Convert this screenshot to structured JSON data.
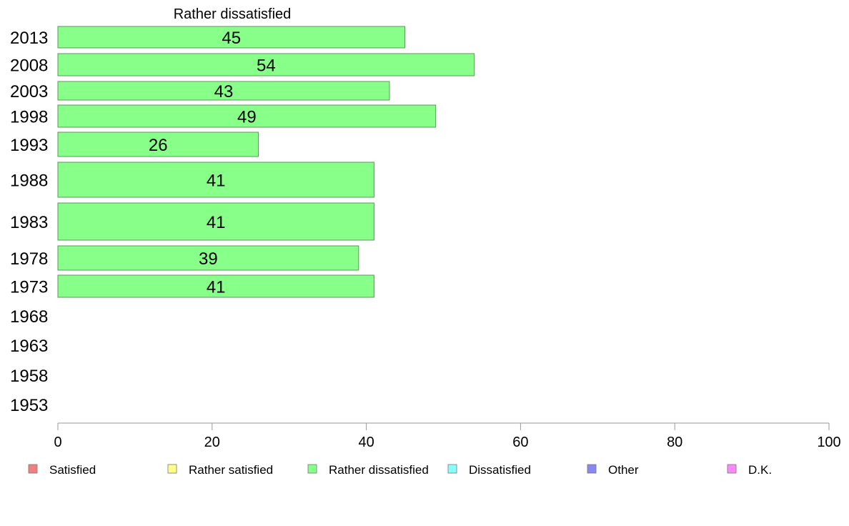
{
  "chart_data": {
    "type": "bar",
    "orientation": "horizontal",
    "panel_title": "Rather dissatisfied",
    "categories": [
      "2013",
      "2008",
      "2003",
      "1998",
      "1993",
      "1988",
      "1983",
      "1978",
      "1973",
      "1968",
      "1963",
      "1958",
      "1953"
    ],
    "series": [
      {
        "name": "Rather dissatisfied",
        "values": [
          45,
          54,
          43,
          49,
          26,
          41,
          41,
          39,
          41,
          null,
          null,
          null,
          null
        ],
        "color": "#88ff88"
      }
    ],
    "xlim": [
      0,
      100
    ],
    "xticks": [
      0,
      20,
      40,
      60,
      80,
      100
    ],
    "grid": false,
    "legend_position": "bottom",
    "legend": [
      {
        "name": "Satisfied",
        "color": "#f08080"
      },
      {
        "name": "Rather satisfied",
        "color": "#ffff88"
      },
      {
        "name": "Rather dissatisfied",
        "color": "#88ff88"
      },
      {
        "name": "Dissatisfied",
        "color": "#88ffff"
      },
      {
        "name": "Other",
        "color": "#8888ee"
      },
      {
        "name": "D.K.",
        "color": "#ff88ff"
      }
    ]
  }
}
